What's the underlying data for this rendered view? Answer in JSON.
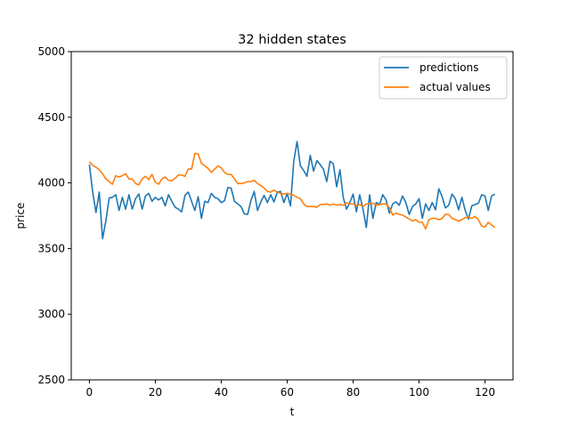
{
  "chart_data": {
    "type": "line",
    "title": "32 hidden states",
    "xlabel": "t",
    "ylabel": "price",
    "xlim": [
      -5.5,
      128.5
    ],
    "ylim": [
      2500,
      5000
    ],
    "xticks": [
      0,
      20,
      40,
      60,
      80,
      100,
      120
    ],
    "yticks": [
      2500,
      3000,
      3500,
      4000,
      4500,
      5000
    ],
    "legend_position": "top-right",
    "grid": false,
    "series": [
      {
        "name": "predictions",
        "color": "#1f77b4",
        "values": [
          4140,
          3930,
          3775,
          3930,
          3575,
          3710,
          3885,
          3890,
          3910,
          3790,
          3890,
          3800,
          3910,
          3800,
          3880,
          3915,
          3800,
          3900,
          3920,
          3860,
          3890,
          3870,
          3890,
          3825,
          3910,
          3860,
          3815,
          3800,
          3780,
          3905,
          3930,
          3860,
          3790,
          3895,
          3730,
          3860,
          3850,
          3920,
          3890,
          3880,
          3850,
          3865,
          3965,
          3960,
          3860,
          3840,
          3820,
          3765,
          3760,
          3865,
          3935,
          3790,
          3855,
          3905,
          3850,
          3910,
          3855,
          3930,
          3935,
          3850,
          3920,
          3825,
          4165,
          4315,
          4130,
          4095,
          4050,
          4210,
          4090,
          4170,
          4140,
          4105,
          4010,
          4165,
          4145,
          3970,
          4100,
          3890,
          3800,
          3850,
          3915,
          3780,
          3910,
          3800,
          3660,
          3910,
          3730,
          3850,
          3835,
          3910,
          3870,
          3770,
          3840,
          3855,
          3830,
          3900,
          3850,
          3760,
          3820,
          3840,
          3880,
          3730,
          3840,
          3790,
          3850,
          3795,
          3955,
          3895,
          3810,
          3830,
          3915,
          3880,
          3795,
          3890,
          3790,
          3725,
          3825,
          3835,
          3845,
          3910,
          3900,
          3790,
          3900,
          3915
        ]
      },
      {
        "name": "actual values",
        "color": "#ff7f0e",
        "values": [
          4160,
          4135,
          4120,
          4100,
          4070,
          4030,
          4010,
          3990,
          4055,
          4045,
          4055,
          4070,
          4030,
          4030,
          3995,
          3985,
          4030,
          4050,
          4025,
          4065,
          4005,
          3990,
          4030,
          4045,
          4020,
          4015,
          4035,
          4060,
          4060,
          4050,
          4105,
          4105,
          4225,
          4220,
          4150,
          4130,
          4110,
          4080,
          4105,
          4130,
          4115,
          4080,
          4065,
          4065,
          4030,
          3995,
          3995,
          4000,
          4010,
          4010,
          4020,
          3995,
          3980,
          3960,
          3935,
          3930,
          3945,
          3930,
          3920,
          3915,
          3920,
          3915,
          3905,
          3890,
          3880,
          3840,
          3820,
          3820,
          3820,
          3815,
          3835,
          3835,
          3840,
          3830,
          3840,
          3830,
          3835,
          3830,
          3850,
          3840,
          3840,
          3830,
          3835,
          3820,
          3840,
          3840,
          3845,
          3830,
          3835,
          3840,
          3840,
          3810,
          3755,
          3770,
          3760,
          3755,
          3740,
          3725,
          3710,
          3720,
          3700,
          3700,
          3650,
          3720,
          3730,
          3730,
          3720,
          3730,
          3760,
          3760,
          3730,
          3720,
          3710,
          3720,
          3735,
          3740,
          3730,
          3745,
          3720,
          3670,
          3665,
          3700,
          3680,
          3660
        ]
      }
    ]
  }
}
